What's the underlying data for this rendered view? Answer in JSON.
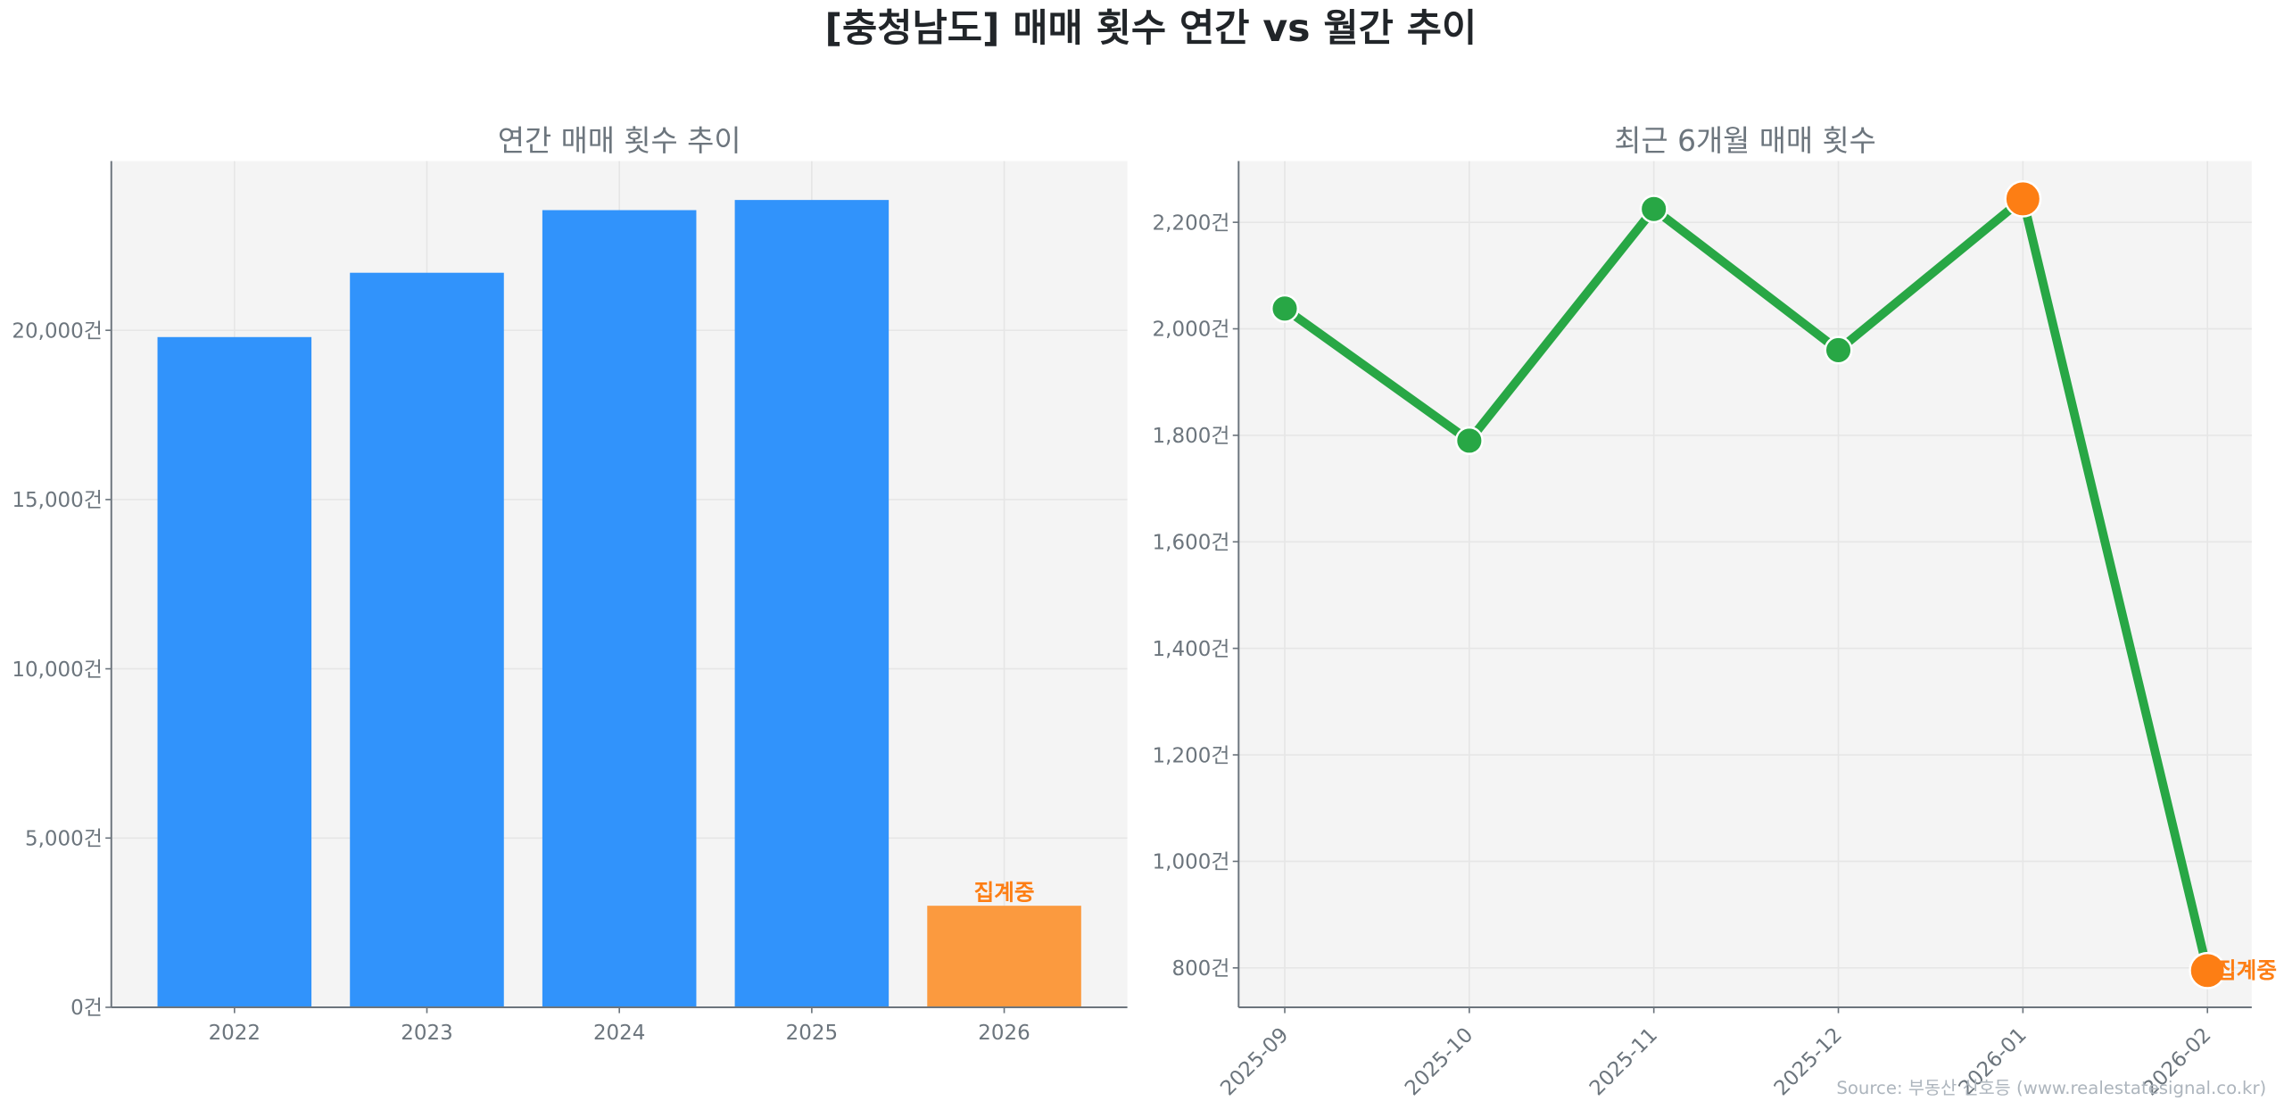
{
  "title": "[충청남도] 매매 횟수 연간 vs 월간 추이",
  "source": "Source: 부동산 신호등 (www.realestatesignal.co.kr)",
  "colors": {
    "bar": "#3193fb",
    "bar_partial": "#fb9a3f",
    "line": "#28a745",
    "marker_highlight": "#fd7e14",
    "plot_bg": "#f4f4f4"
  },
  "chart_data": [
    {
      "type": "bar",
      "title": "연간 매매 횟수 추이",
      "categories": [
        "2022",
        "2023",
        "2024",
        "2025",
        "2026"
      ],
      "values": [
        19800,
        21700,
        23550,
        23850,
        3000
      ],
      "partial": [
        false,
        false,
        false,
        false,
        true
      ],
      "annotation": {
        "category": "2026",
        "text": "집계중"
      },
      "ylim": [
        0,
        25000
      ],
      "yticks": [
        0,
        5000,
        10000,
        15000,
        20000
      ],
      "ytick_labels": [
        "0건",
        "5,000건",
        "10,000건",
        "15,000건",
        "20,000건"
      ],
      "grid": true
    },
    {
      "type": "line",
      "title": "최근 6개월 매매 횟수",
      "categories": [
        "2025-09",
        "2025-10",
        "2025-11",
        "2025-12",
        "2026-01",
        "2026-02"
      ],
      "values": [
        2038,
        1790,
        2225,
        1960,
        2244,
        795
      ],
      "highlight": [
        "2026-01",
        "2026-02"
      ],
      "annotation": {
        "category": "2026-02",
        "text": "집계중"
      },
      "ylim": [
        726,
        2315
      ],
      "yticks": [
        800,
        1000,
        1200,
        1400,
        1600,
        1800,
        2000,
        2200
      ],
      "ytick_labels": [
        "800건",
        "1,000건",
        "1,200건",
        "1,400건",
        "1,600건",
        "1,800건",
        "2,000건",
        "2,200건"
      ],
      "xtick_rotation": 45,
      "grid": true
    }
  ]
}
